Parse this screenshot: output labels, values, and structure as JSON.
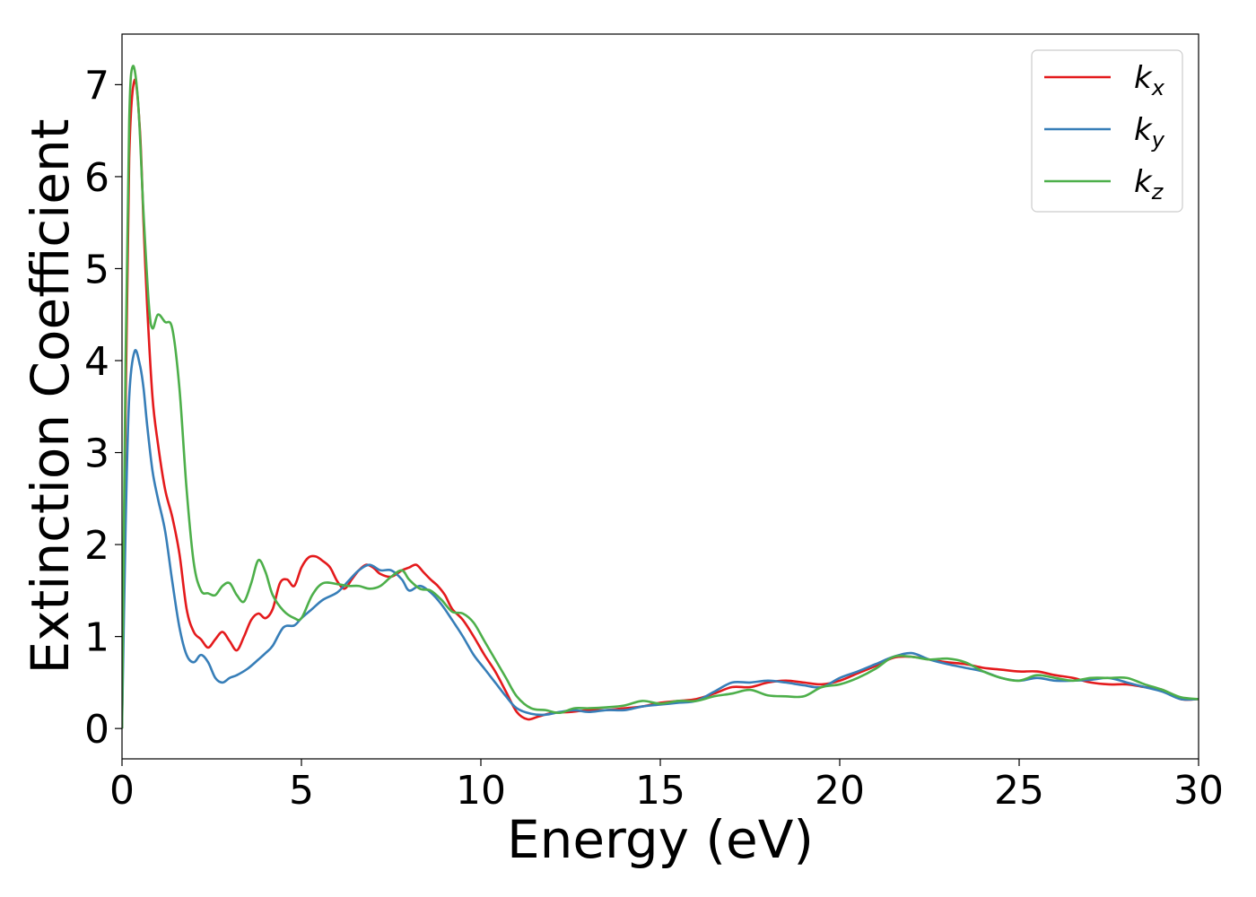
{
  "chart_data": {
    "type": "line",
    "title": "",
    "xlabel": "Energy (eV)",
    "ylabel": "Extinction Coefficient",
    "xlim": [
      0,
      30
    ],
    "ylim": [
      -0.33,
      7.55
    ],
    "xticks": [
      0,
      5,
      10,
      15,
      20,
      25,
      30
    ],
    "yticks": [
      0,
      1,
      2,
      3,
      4,
      5,
      6,
      7
    ],
    "grid": false,
    "legend_position": "top-right",
    "series": [
      {
        "name": "kx",
        "name_base": "k",
        "name_sub": "x",
        "color": "#e41a1c",
        "points": [
          [
            0,
            0
          ],
          [
            0.1,
            3.5
          ],
          [
            0.2,
            6.2
          ],
          [
            0.35,
            7.05
          ],
          [
            0.5,
            6.5
          ],
          [
            0.6,
            5.5
          ],
          [
            0.7,
            4.6
          ],
          [
            0.85,
            3.6
          ],
          [
            1.0,
            3.1
          ],
          [
            1.2,
            2.6
          ],
          [
            1.4,
            2.3
          ],
          [
            1.6,
            1.9
          ],
          [
            1.8,
            1.3
          ],
          [
            2.0,
            1.05
          ],
          [
            2.2,
            0.97
          ],
          [
            2.4,
            0.88
          ],
          [
            2.6,
            0.97
          ],
          [
            2.8,
            1.05
          ],
          [
            3.0,
            0.95
          ],
          [
            3.2,
            0.85
          ],
          [
            3.4,
            1.0
          ],
          [
            3.6,
            1.18
          ],
          [
            3.8,
            1.25
          ],
          [
            4.0,
            1.2
          ],
          [
            4.2,
            1.3
          ],
          [
            4.4,
            1.58
          ],
          [
            4.6,
            1.62
          ],
          [
            4.8,
            1.55
          ],
          [
            5.0,
            1.75
          ],
          [
            5.2,
            1.86
          ],
          [
            5.4,
            1.87
          ],
          [
            5.6,
            1.82
          ],
          [
            5.8,
            1.75
          ],
          [
            6.0,
            1.6
          ],
          [
            6.2,
            1.52
          ],
          [
            6.4,
            1.62
          ],
          [
            6.6,
            1.72
          ],
          [
            6.8,
            1.78
          ],
          [
            7.0,
            1.75
          ],
          [
            7.2,
            1.68
          ],
          [
            7.5,
            1.65
          ],
          [
            7.8,
            1.72
          ],
          [
            8.0,
            1.75
          ],
          [
            8.2,
            1.78
          ],
          [
            8.4,
            1.7
          ],
          [
            8.6,
            1.62
          ],
          [
            8.8,
            1.55
          ],
          [
            9.0,
            1.45
          ],
          [
            9.2,
            1.3
          ],
          [
            9.5,
            1.18
          ],
          [
            9.8,
            1.0
          ],
          [
            10.1,
            0.8
          ],
          [
            10.4,
            0.62
          ],
          [
            10.7,
            0.4
          ],
          [
            11.0,
            0.18
          ],
          [
            11.3,
            0.1
          ],
          [
            11.6,
            0.13
          ],
          [
            12.0,
            0.17
          ],
          [
            12.5,
            0.18
          ],
          [
            13.0,
            0.2
          ],
          [
            13.5,
            0.2
          ],
          [
            14.0,
            0.22
          ],
          [
            14.5,
            0.24
          ],
          [
            15.0,
            0.28
          ],
          [
            15.5,
            0.3
          ],
          [
            16.0,
            0.32
          ],
          [
            16.5,
            0.38
          ],
          [
            17.0,
            0.45
          ],
          [
            17.5,
            0.45
          ],
          [
            18.0,
            0.5
          ],
          [
            18.5,
            0.52
          ],
          [
            19.0,
            0.5
          ],
          [
            19.5,
            0.48
          ],
          [
            20.0,
            0.52
          ],
          [
            20.5,
            0.6
          ],
          [
            21.0,
            0.68
          ],
          [
            21.5,
            0.77
          ],
          [
            22.0,
            0.78
          ],
          [
            22.5,
            0.75
          ],
          [
            23.0,
            0.72
          ],
          [
            23.5,
            0.7
          ],
          [
            24.0,
            0.66
          ],
          [
            24.5,
            0.64
          ],
          [
            25.0,
            0.62
          ],
          [
            25.5,
            0.62
          ],
          [
            26.0,
            0.58
          ],
          [
            26.5,
            0.55
          ],
          [
            27.0,
            0.5
          ],
          [
            27.5,
            0.48
          ],
          [
            28.0,
            0.48
          ],
          [
            28.5,
            0.45
          ],
          [
            29.0,
            0.42
          ],
          [
            29.5,
            0.32
          ],
          [
            30.0,
            0.32
          ]
        ]
      },
      {
        "name": "ky",
        "name_base": "k",
        "name_sub": "y",
        "color": "#377eb8",
        "points": [
          [
            0,
            0
          ],
          [
            0.1,
            2.2
          ],
          [
            0.2,
            3.6
          ],
          [
            0.35,
            4.1
          ],
          [
            0.5,
            3.95
          ],
          [
            0.6,
            3.7
          ],
          [
            0.7,
            3.3
          ],
          [
            0.85,
            2.8
          ],
          [
            1.0,
            2.5
          ],
          [
            1.2,
            2.15
          ],
          [
            1.4,
            1.6
          ],
          [
            1.6,
            1.1
          ],
          [
            1.8,
            0.8
          ],
          [
            2.0,
            0.72
          ],
          [
            2.2,
            0.8
          ],
          [
            2.4,
            0.72
          ],
          [
            2.6,
            0.55
          ],
          [
            2.8,
            0.5
          ],
          [
            3.0,
            0.55
          ],
          [
            3.2,
            0.58
          ],
          [
            3.5,
            0.65
          ],
          [
            3.8,
            0.75
          ],
          [
            4.0,
            0.82
          ],
          [
            4.2,
            0.9
          ],
          [
            4.5,
            1.1
          ],
          [
            4.8,
            1.12
          ],
          [
            5.0,
            1.2
          ],
          [
            5.3,
            1.3
          ],
          [
            5.6,
            1.4
          ],
          [
            6.0,
            1.48
          ],
          [
            6.3,
            1.6
          ],
          [
            6.6,
            1.72
          ],
          [
            6.9,
            1.78
          ],
          [
            7.2,
            1.72
          ],
          [
            7.5,
            1.72
          ],
          [
            7.8,
            1.62
          ],
          [
            8.0,
            1.5
          ],
          [
            8.3,
            1.55
          ],
          [
            8.6,
            1.48
          ],
          [
            8.9,
            1.35
          ],
          [
            9.2,
            1.18
          ],
          [
            9.5,
            1.0
          ],
          [
            9.8,
            0.8
          ],
          [
            10.1,
            0.65
          ],
          [
            10.4,
            0.5
          ],
          [
            10.7,
            0.35
          ],
          [
            11.0,
            0.22
          ],
          [
            11.4,
            0.16
          ],
          [
            11.8,
            0.15
          ],
          [
            12.2,
            0.18
          ],
          [
            12.6,
            0.2
          ],
          [
            13.0,
            0.18
          ],
          [
            13.5,
            0.2
          ],
          [
            14.0,
            0.2
          ],
          [
            14.5,
            0.24
          ],
          [
            15.0,
            0.26
          ],
          [
            15.5,
            0.28
          ],
          [
            16.0,
            0.3
          ],
          [
            16.5,
            0.4
          ],
          [
            17.0,
            0.5
          ],
          [
            17.5,
            0.5
          ],
          [
            18.0,
            0.52
          ],
          [
            18.5,
            0.5
          ],
          [
            19.0,
            0.47
          ],
          [
            19.5,
            0.45
          ],
          [
            20.0,
            0.55
          ],
          [
            20.5,
            0.62
          ],
          [
            21.0,
            0.7
          ],
          [
            21.5,
            0.78
          ],
          [
            22.0,
            0.82
          ],
          [
            22.5,
            0.75
          ],
          [
            23.0,
            0.7
          ],
          [
            23.5,
            0.66
          ],
          [
            24.0,
            0.62
          ],
          [
            24.5,
            0.55
          ],
          [
            25.0,
            0.52
          ],
          [
            25.5,
            0.55
          ],
          [
            26.0,
            0.52
          ],
          [
            26.5,
            0.52
          ],
          [
            27.0,
            0.53
          ],
          [
            27.5,
            0.55
          ],
          [
            28.0,
            0.5
          ],
          [
            28.5,
            0.45
          ],
          [
            29.0,
            0.4
          ],
          [
            29.5,
            0.32
          ],
          [
            30.0,
            0.32
          ]
        ]
      },
      {
        "name": "kz",
        "name_base": "k",
        "name_sub": "z",
        "color": "#4daf4a",
        "points": [
          [
            0,
            0
          ],
          [
            0.1,
            4.0
          ],
          [
            0.2,
            6.6
          ],
          [
            0.3,
            7.2
          ],
          [
            0.45,
            6.8
          ],
          [
            0.6,
            5.6
          ],
          [
            0.75,
            4.6
          ],
          [
            0.85,
            4.35
          ],
          [
            1.0,
            4.5
          ],
          [
            1.2,
            4.42
          ],
          [
            1.4,
            4.35
          ],
          [
            1.6,
            3.7
          ],
          [
            1.8,
            2.6
          ],
          [
            2.0,
            1.8
          ],
          [
            2.2,
            1.5
          ],
          [
            2.4,
            1.47
          ],
          [
            2.6,
            1.45
          ],
          [
            2.8,
            1.55
          ],
          [
            3.0,
            1.58
          ],
          [
            3.2,
            1.45
          ],
          [
            3.4,
            1.38
          ],
          [
            3.6,
            1.58
          ],
          [
            3.8,
            1.83
          ],
          [
            4.0,
            1.7
          ],
          [
            4.2,
            1.45
          ],
          [
            4.5,
            1.28
          ],
          [
            4.8,
            1.2
          ],
          [
            5.0,
            1.2
          ],
          [
            5.3,
            1.45
          ],
          [
            5.6,
            1.58
          ],
          [
            6.0,
            1.57
          ],
          [
            6.3,
            1.55
          ],
          [
            6.6,
            1.55
          ],
          [
            6.9,
            1.52
          ],
          [
            7.2,
            1.55
          ],
          [
            7.5,
            1.65
          ],
          [
            7.8,
            1.72
          ],
          [
            8.0,
            1.62
          ],
          [
            8.3,
            1.52
          ],
          [
            8.6,
            1.5
          ],
          [
            8.9,
            1.4
          ],
          [
            9.2,
            1.27
          ],
          [
            9.5,
            1.25
          ],
          [
            9.8,
            1.15
          ],
          [
            10.1,
            0.95
          ],
          [
            10.4,
            0.75
          ],
          [
            10.7,
            0.55
          ],
          [
            11.0,
            0.35
          ],
          [
            11.4,
            0.22
          ],
          [
            11.8,
            0.2
          ],
          [
            12.2,
            0.17
          ],
          [
            12.6,
            0.22
          ],
          [
            13.0,
            0.22
          ],
          [
            13.5,
            0.23
          ],
          [
            14.0,
            0.25
          ],
          [
            14.5,
            0.3
          ],
          [
            15.0,
            0.27
          ],
          [
            15.5,
            0.3
          ],
          [
            16.0,
            0.3
          ],
          [
            16.5,
            0.35
          ],
          [
            17.0,
            0.38
          ],
          [
            17.5,
            0.42
          ],
          [
            18.0,
            0.36
          ],
          [
            18.5,
            0.35
          ],
          [
            19.0,
            0.35
          ],
          [
            19.5,
            0.45
          ],
          [
            20.0,
            0.48
          ],
          [
            20.5,
            0.55
          ],
          [
            21.0,
            0.65
          ],
          [
            21.5,
            0.78
          ],
          [
            22.0,
            0.78
          ],
          [
            22.5,
            0.75
          ],
          [
            23.0,
            0.76
          ],
          [
            23.5,
            0.72
          ],
          [
            24.0,
            0.62
          ],
          [
            24.5,
            0.55
          ],
          [
            25.0,
            0.52
          ],
          [
            25.5,
            0.58
          ],
          [
            26.0,
            0.55
          ],
          [
            26.5,
            0.52
          ],
          [
            27.0,
            0.55
          ],
          [
            27.5,
            0.55
          ],
          [
            28.0,
            0.55
          ],
          [
            28.5,
            0.48
          ],
          [
            29.0,
            0.42
          ],
          [
            29.5,
            0.34
          ],
          [
            30.0,
            0.32
          ]
        ]
      }
    ]
  }
}
